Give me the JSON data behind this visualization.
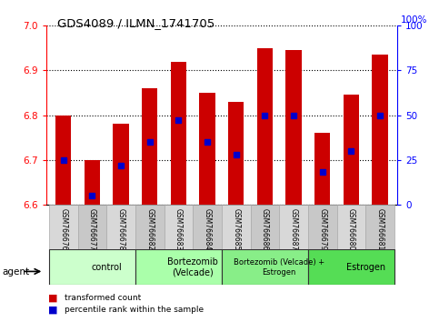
{
  "title": "GDS4089 / ILMN_1741705",
  "samples": [
    "GSM766676",
    "GSM766677",
    "GSM766678",
    "GSM766682",
    "GSM766683",
    "GSM766684",
    "GSM766685",
    "GSM766686",
    "GSM766687",
    "GSM766679",
    "GSM766680",
    "GSM766681"
  ],
  "transformed_count": [
    6.8,
    6.7,
    6.78,
    6.86,
    6.92,
    6.85,
    6.83,
    6.95,
    6.945,
    6.76,
    6.845,
    6.935
  ],
  "percentile_rank": [
    25,
    5,
    22,
    35,
    47,
    35,
    28,
    50,
    50,
    18,
    30,
    50
  ],
  "ylim_left": [
    6.6,
    7.0
  ],
  "ylim_right": [
    0,
    100
  ],
  "yticks_left": [
    6.6,
    6.7,
    6.8,
    6.9,
    7.0
  ],
  "yticks_right": [
    0,
    25,
    50,
    75,
    100
  ],
  "groups": [
    {
      "label": "control",
      "start": 0,
      "end": 3
    },
    {
      "label": "Bortezomib\n(Velcade)",
      "start": 3,
      "end": 6
    },
    {
      "label": "Bortezomib (Velcade) +\nEstrogen",
      "start": 6,
      "end": 9
    },
    {
      "label": "Estrogen",
      "start": 9,
      "end": 12
    }
  ],
  "group_colors": [
    "#ccffcc",
    "#aaffaa",
    "#88ee88",
    "#55dd55"
  ],
  "bar_color": "#cc0000",
  "marker_color": "#0000cc",
  "bar_width": 0.55,
  "legend_labels": [
    "transformed count",
    "percentile rank within the sample"
  ],
  "legend_colors": [
    "#cc0000",
    "#0000cc"
  ],
  "agent_label": "agent"
}
